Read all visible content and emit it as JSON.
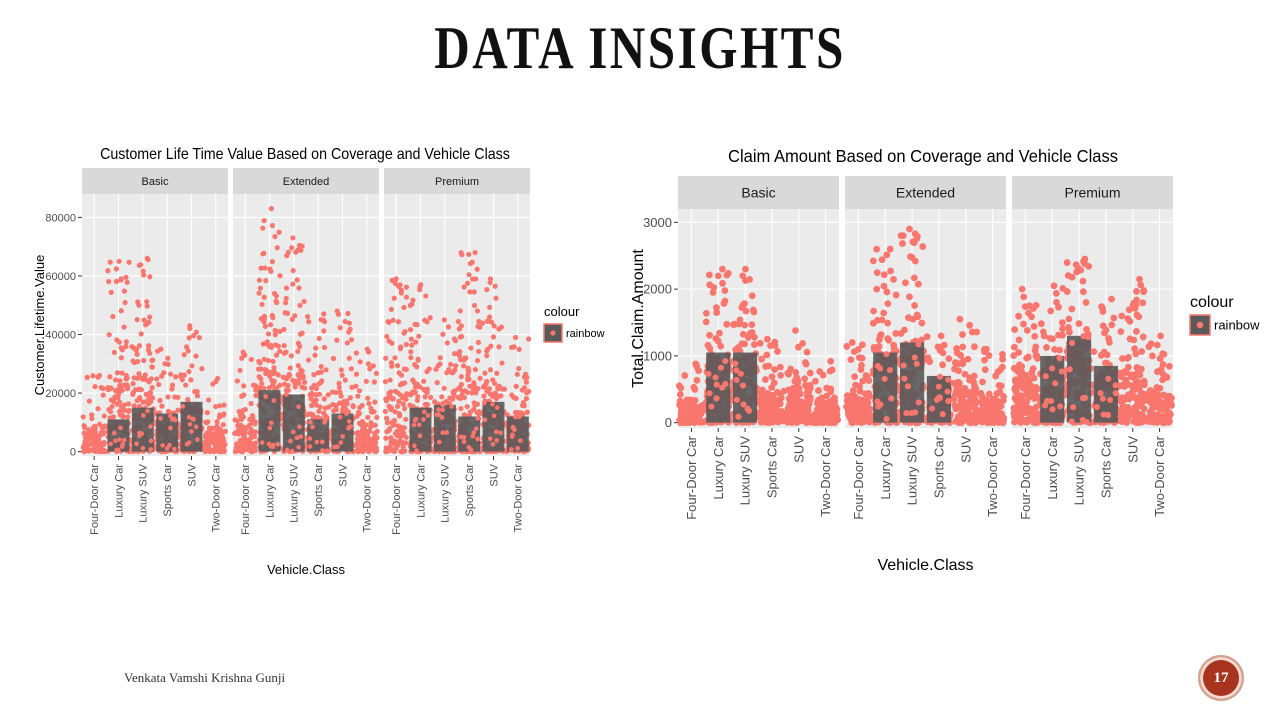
{
  "slide": {
    "title": "DATA INSIGHTS",
    "author": "Venkata Vamshi Krishna Gunji",
    "page_number": "17"
  },
  "chart_data": [
    {
      "type": "bar",
      "title": "Customer Life Time Value Based on Coverage and Vehicle Class",
      "xlabel": "Vehicle.Class",
      "ylabel": "Customer.Lifetime.Value",
      "ylim": [
        -1500,
        88000
      ],
      "yticks": [
        0,
        20000,
        40000,
        60000,
        80000
      ],
      "facets": [
        "Basic",
        "Extended",
        "Premium"
      ],
      "categories": [
        "Four-Door Car",
        "Luxury Car",
        "Luxury SUV",
        "Sports Car",
        "SUV",
        "Two-Door Car"
      ],
      "series": [
        {
          "facet": "Basic",
          "values": [
            0,
            11000,
            15000,
            13000,
            17000,
            0
          ]
        },
        {
          "facet": "Extended",
          "values": [
            0,
            21000,
            19500,
            11000,
            13000,
            0
          ]
        },
        {
          "facet": "Premium",
          "values": [
            0,
            15000,
            16000,
            12000,
            17000,
            12000
          ]
        }
      ],
      "scatter_max": {
        "Basic": [
          26000,
          65000,
          66000,
          35000,
          43000,
          25000
        ],
        "Extended": [
          34000,
          83000,
          73000,
          47000,
          48000,
          35000
        ],
        "Premium": [
          59000,
          57000,
          45000,
          68000,
          59000,
          39000
        ]
      },
      "legend": {
        "title": "colour",
        "label": "rainbow",
        "position": "right"
      },
      "colors": {
        "points": "#f8766d",
        "bars": "#595959",
        "panel": "#ebebeb",
        "strip": "#d9d9d9",
        "grid": "#ffffff"
      }
    },
    {
      "type": "bar",
      "title": "Claim Amount Based on Coverage and Vehicle Class",
      "xlabel": "Vehicle.Class",
      "ylabel": "Total.Claim.Amount",
      "ylim": [
        -80,
        3200
      ],
      "yticks": [
        0,
        1000,
        2000,
        3000
      ],
      "facets": [
        "Basic",
        "Extended",
        "Premium"
      ],
      "categories": [
        "Four-Door Car",
        "Luxury Car",
        "Luxury SUV",
        "Sports Car",
        "SUV",
        "Two-Door Car"
      ],
      "series": [
        {
          "facet": "Basic",
          "values": [
            0,
            1050,
            1050,
            0,
            0,
            0
          ]
        },
        {
          "facet": "Extended",
          "values": [
            0,
            1050,
            1200,
            700,
            0,
            0
          ]
        },
        {
          "facet": "Premium",
          "values": [
            0,
            1000,
            1300,
            850,
            0,
            0
          ]
        }
      ],
      "scatter_max": {
        "Basic": [
          880,
          2300,
          2300,
          1250,
          1380,
          920
        ],
        "Extended": [
          1200,
          2600,
          2900,
          1300,
          1550,
          1100
        ],
        "Premium": [
          2000,
          2050,
          2450,
          1850,
          2150,
          1300
        ]
      },
      "legend": {
        "title": "colour",
        "label": "rainbow",
        "position": "right"
      },
      "colors": {
        "points": "#f8766d",
        "bars": "#595959",
        "panel": "#ebebeb",
        "strip": "#d9d9d9",
        "grid": "#ffffff"
      }
    }
  ]
}
